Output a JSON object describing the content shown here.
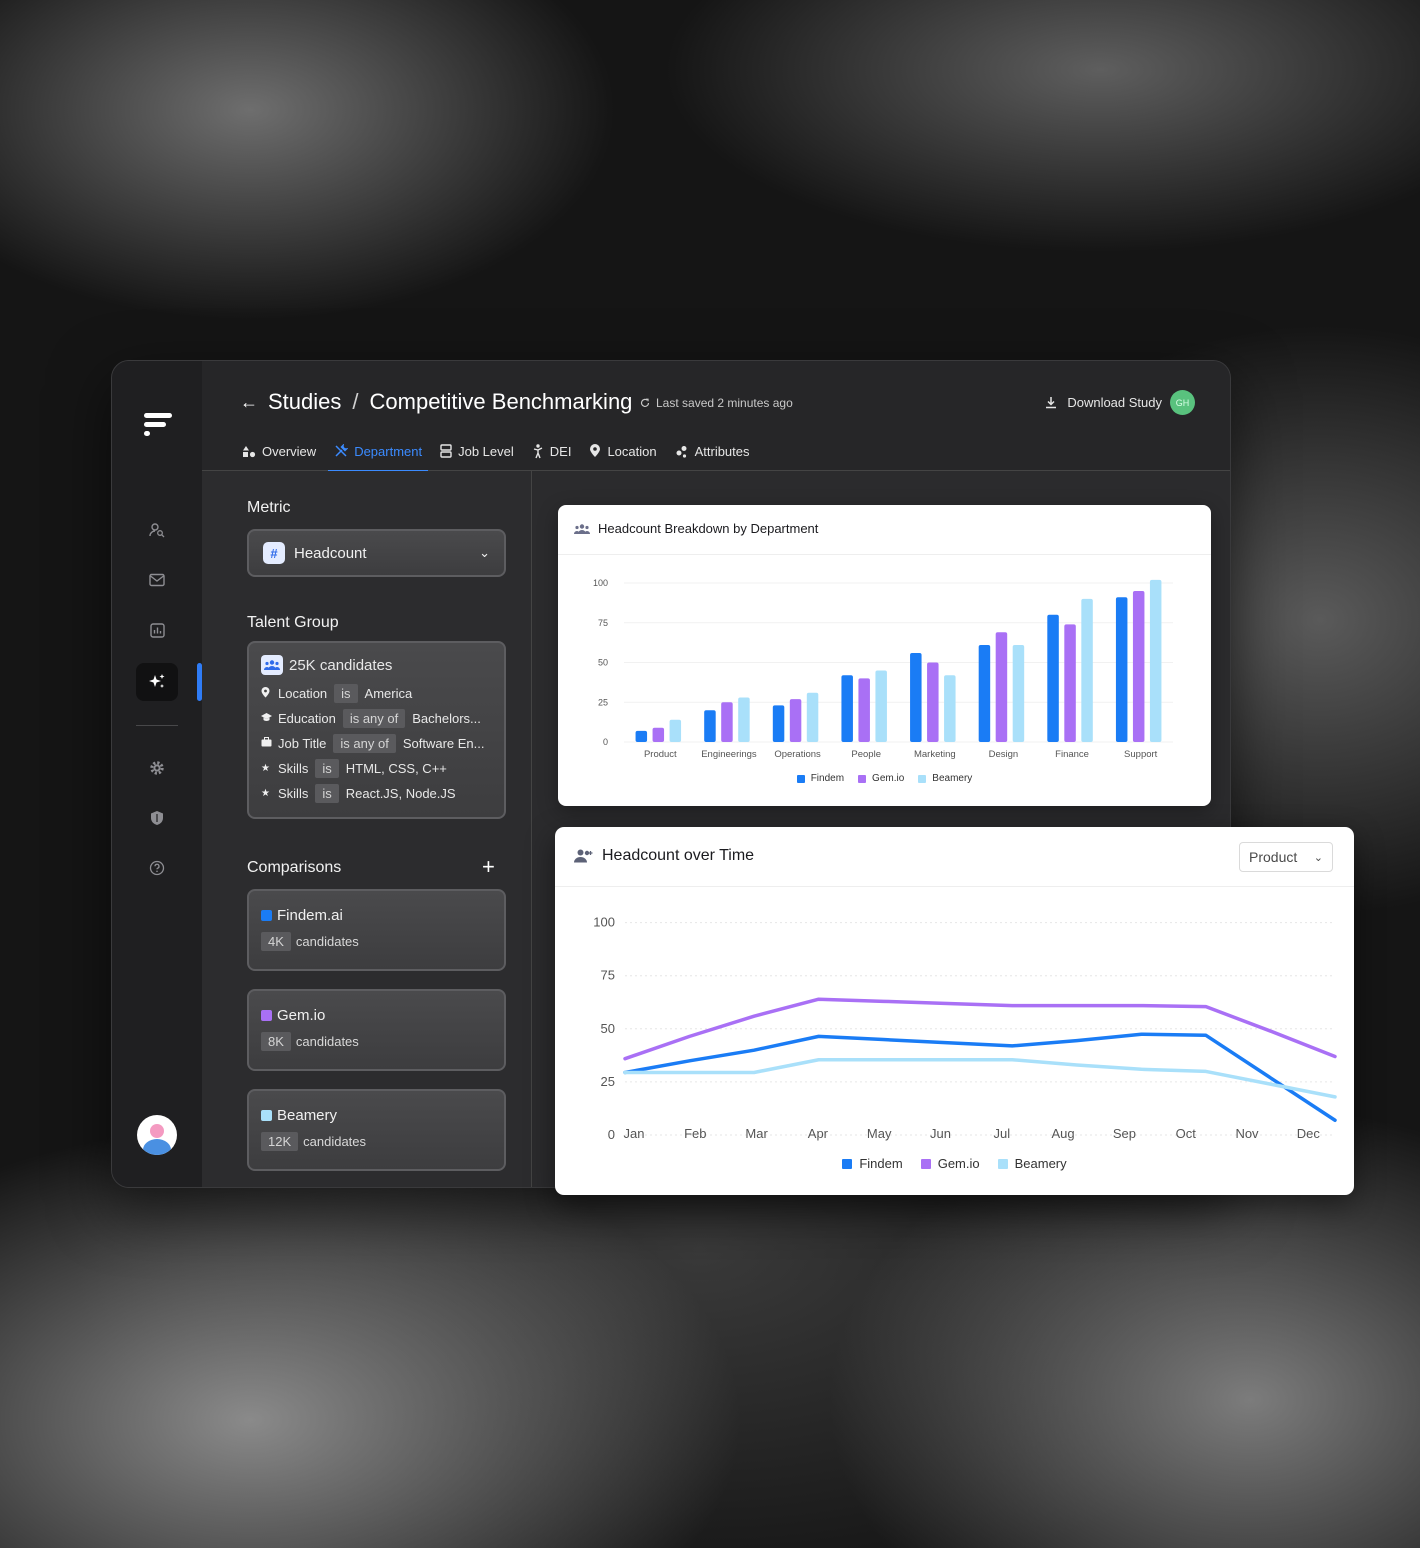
{
  "breadcrumb": {
    "root": "Studies",
    "separator": "/",
    "current": "Competitive Benchmarking"
  },
  "status": {
    "saved": "Last saved 2 minutes ago"
  },
  "header": {
    "download_label": "Download Study",
    "user_initials": "GH"
  },
  "tabs": [
    {
      "label": "Overview",
      "icon": "shapes-icon",
      "active": false
    },
    {
      "label": "Department",
      "icon": "tools-icon",
      "active": true
    },
    {
      "label": "Job Level",
      "icon": "layers-icon",
      "active": false
    },
    {
      "label": "DEI",
      "icon": "person-icon",
      "active": false
    },
    {
      "label": "Location",
      "icon": "pin-icon",
      "active": false
    },
    {
      "label": "Attributes",
      "icon": "dots-icon",
      "active": false
    }
  ],
  "sidebar": {
    "items": [
      {
        "icon": "user-search-icon"
      },
      {
        "icon": "mail-icon"
      },
      {
        "icon": "chart-icon"
      },
      {
        "icon": "sparkle-icon",
        "active": true
      },
      {
        "icon": "gear-icon"
      },
      {
        "icon": "shield-icon"
      },
      {
        "icon": "help-icon"
      }
    ]
  },
  "metric": {
    "title": "Metric",
    "value": "Headcount",
    "icon_glyph": "#"
  },
  "talent_group": {
    "title": "Talent Group",
    "summary": "25K candidates",
    "filters": [
      {
        "field": "Location",
        "op": "is",
        "value": "America"
      },
      {
        "field": "Education",
        "op": "is any of",
        "value": "Bachelors..."
      },
      {
        "field": "Job Title",
        "op": "is any of",
        "value": "Software En..."
      },
      {
        "field": "Skills",
        "op": "is",
        "value": "HTML, CSS, C++"
      },
      {
        "field": "Skills",
        "op": "is",
        "value": "React.JS, Node.JS"
      }
    ]
  },
  "comparisons": {
    "title": "Comparisons",
    "add_glyph": "+",
    "items": [
      {
        "name": "Findem.ai",
        "count": "4K",
        "unit": "candidates",
        "color": "#1a7cf5"
      },
      {
        "name": "Gem.io",
        "count": "8K",
        "unit": "candidates",
        "color": "#a970f5"
      },
      {
        "name": "Beamery",
        "count": "12K",
        "unit": "candidates",
        "color": "#a9e0fa"
      }
    ]
  },
  "colors": {
    "findem": "#1a7cf5",
    "gem": "#a970f5",
    "beamery": "#a9e0fa",
    "accent": "#3b8bff"
  },
  "chart_data": [
    {
      "type": "bar",
      "title": "Headcount Breakdown by Department",
      "categories": [
        "Product",
        "Engineerings",
        "Operations",
        "People",
        "Marketing",
        "Design",
        "Finance",
        "Support"
      ],
      "yticks": [
        0,
        25,
        50,
        75,
        100
      ],
      "ylim": [
        0,
        100
      ],
      "series": [
        {
          "name": "Findem",
          "color": "#1a7cf5",
          "values": [
            7,
            20,
            23,
            42,
            56,
            61,
            80,
            91
          ]
        },
        {
          "name": "Gem.io",
          "color": "#a970f5",
          "values": [
            9,
            25,
            27,
            40,
            50,
            69,
            74,
            95
          ]
        },
        {
          "name": "Beamery",
          "color": "#a9e0fa",
          "values": [
            14,
            28,
            31,
            45,
            42,
            61,
            90,
            102
          ]
        }
      ],
      "legend": "bottom"
    },
    {
      "type": "line",
      "title": "Headcount over Time",
      "filter": "Product",
      "categories": [
        "Jan",
        "Feb",
        "Mar",
        "Apr",
        "May",
        "Jun",
        "Jul",
        "Aug",
        "Sep",
        "Oct",
        "Nov",
        "Dec"
      ],
      "yticks": [
        0,
        25,
        50,
        75,
        100
      ],
      "ylim": [
        0,
        105
      ],
      "series": [
        {
          "name": "Findem",
          "color": "#1a7cf5",
          "values": [
            28.5,
            34,
            39,
            45.5,
            44,
            42.5,
            41,
            43.5,
            46.5,
            46,
            26,
            6
          ]
        },
        {
          "name": "Gem.io",
          "color": "#a970f5",
          "values": [
            35,
            45.5,
            55,
            63,
            62,
            61,
            60,
            60,
            60,
            59.5,
            48,
            36
          ]
        },
        {
          "name": "Beamery",
          "color": "#a9e0fa",
          "values": [
            28.5,
            28.5,
            28.5,
            34.5,
            34.5,
            34.5,
            34.5,
            32,
            30,
            29,
            23,
            17
          ]
        }
      ],
      "legend": "bottom"
    }
  ]
}
